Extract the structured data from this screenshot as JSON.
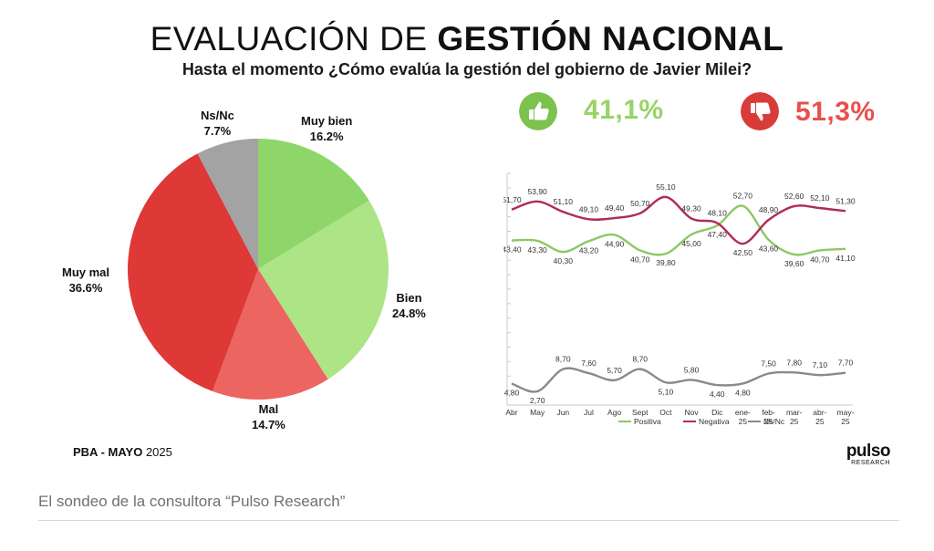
{
  "header": {
    "title_light": "EVALUACIÓN DE",
    "title_bold": "GESTIÓN NACIONAL",
    "subtitle": "Hasta el momento ¿Cómo evalúa la gestión del gobierno de Javier Milei?"
  },
  "kpis": {
    "positive": {
      "value": "41,1%",
      "icon": "thumbs-up-icon",
      "color": "#96d466"
    },
    "negative": {
      "value": "51,3%",
      "icon": "thumbs-down-icon",
      "color": "#e8504c"
    }
  },
  "chart_data": [
    {
      "type": "pie",
      "slices": [
        {
          "label": "Muy bien",
          "value": 16.2,
          "display": "16.2%",
          "color": "#8fd66a"
        },
        {
          "label": "Bien",
          "value": 24.8,
          "display": "24.8%",
          "color": "#ade486"
        },
        {
          "label": "Mal",
          "value": 14.7,
          "display": "14.7%",
          "color": "#ec6560"
        },
        {
          "label": "Muy mal",
          "value": 36.6,
          "display": "36.6%",
          "color": "#de3837"
        },
        {
          "label": "Ns/Nc",
          "value": 7.7,
          "display": "7.7%",
          "color": "#a3a3a3"
        }
      ]
    },
    {
      "type": "line",
      "x": [
        "Abr",
        "May",
        "Jun",
        "Jul",
        "Ago",
        "Sept",
        "Oct",
        "Nov",
        "Dic",
        "ene-25",
        "feb-25",
        "mar-25",
        "abr-25",
        "may-25"
      ],
      "ylim": [
        0,
        60
      ],
      "grid": false,
      "legend_position": "bottom",
      "series": [
        {
          "name": "Positiva",
          "color": "#8cc864",
          "values": [
            43.4,
            43.3,
            40.3,
            43.2,
            44.9,
            40.7,
            39.8,
            45.0,
            47.4,
            52.7,
            43.6,
            39.6,
            40.7,
            41.1
          ],
          "labels": [
            "43,40",
            "43,30",
            "40,30",
            "43,20",
            "44,90",
            "40,70",
            "39,80",
            "45,00",
            "47,40",
            "52,70",
            "43,60",
            "39,60",
            "40,70",
            "41,10"
          ]
        },
        {
          "name": "Negativa",
          "color": "#b02a5a",
          "values": [
            51.7,
            53.9,
            51.1,
            49.1,
            49.4,
            50.7,
            55.1,
            49.3,
            48.1,
            42.5,
            48.9,
            52.6,
            52.1,
            51.3
          ],
          "labels": [
            "51,70",
            "53,90",
            "51,10",
            "49,10",
            "49,40",
            "50,70",
            "55,10",
            "49,30",
            "48,10",
            "42,50",
            "48,90",
            "52,60",
            "52,10",
            "51,30"
          ]
        },
        {
          "name": "Ns/Nc",
          "color": "#8a8a8a",
          "values": [
            4.8,
            2.7,
            8.7,
            7.6,
            5.7,
            8.7,
            5.1,
            5.8,
            4.4,
            4.8,
            7.5,
            7.8,
            7.1,
            7.7
          ],
          "labels": [
            "4,80",
            "2,70",
            "8,70",
            "7,60",
            "5,70",
            "8,70",
            "5,10",
            "5,80",
            "4,40",
            "4,80",
            "7,50",
            "7,80",
            "7,10",
            "7,70"
          ]
        }
      ]
    }
  ],
  "footer": {
    "region_month": "PBA -  MAYO",
    "year": "2025",
    "brand_name": "pulso",
    "brand_sub": "RESEARCH",
    "caption": "El sondeo de la consultora “Pulso Research”"
  }
}
